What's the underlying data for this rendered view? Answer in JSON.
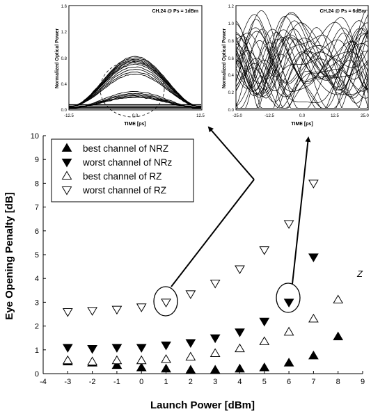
{
  "chart_data": [
    {
      "type": "scatter",
      "title": "",
      "xlabel": "Launch Power [dBm]",
      "ylabel": "Eye Opening Penalty [dB]",
      "xlim": [
        -4,
        9
      ],
      "ylim": [
        0,
        10
      ],
      "xticks": [
        "-4",
        "-3",
        "-2",
        "-1",
        "0",
        "1",
        "2",
        "3",
        "4",
        "5",
        "6",
        "7",
        "8",
        "9"
      ],
      "yticks": [
        "0",
        "1",
        "2",
        "3",
        "4",
        "5",
        "6",
        "7",
        "8",
        "9",
        "10"
      ],
      "legend_position": "top-left",
      "series": [
        {
          "name": "best channel of NRZ",
          "marker": "triangle-up",
          "filled": true,
          "x": [
            -3,
            -2,
            -1,
            0,
            1,
            2,
            3,
            4,
            5,
            6,
            7,
            8
          ],
          "y": [
            0.5,
            0.45,
            0.35,
            0.25,
            0.2,
            0.15,
            0.15,
            0.2,
            0.25,
            0.45,
            0.75,
            1.55
          ]
        },
        {
          "name": "worst channel of NRz",
          "marker": "triangle-down",
          "filled": true,
          "x": [
            -3,
            -2,
            -1,
            0,
            1,
            2,
            3,
            4,
            5,
            6,
            7
          ],
          "y": [
            1.1,
            1.05,
            1.1,
            1.1,
            1.2,
            1.3,
            1.5,
            1.75,
            2.2,
            3.0,
            4.9
          ]
        },
        {
          "name": "best channel of RZ",
          "marker": "triangle-up",
          "filled": false,
          "x": [
            -3,
            -2,
            -1,
            0,
            1,
            2,
            3,
            4,
            5,
            6,
            7,
            8
          ],
          "y": [
            0.55,
            0.5,
            0.55,
            0.55,
            0.6,
            0.7,
            0.85,
            1.05,
            1.35,
            1.75,
            2.3,
            3.1
          ]
        },
        {
          "name": "worst channel of RZ",
          "marker": "triangle-down",
          "filled": false,
          "x": [
            -3,
            -2,
            -1,
            0,
            1,
            2,
            3,
            4,
            5,
            6,
            7
          ],
          "y": [
            2.6,
            2.65,
            2.7,
            2.8,
            3.0,
            3.35,
            3.8,
            4.4,
            5.2,
            6.3,
            8.0
          ]
        }
      ],
      "annotations": [
        {
          "type": "ellipse",
          "x": 1,
          "y": 3.0
        },
        {
          "type": "ellipse",
          "x": 6,
          "y": 3.0
        },
        {
          "type": "text",
          "text": "Z",
          "x": 9,
          "y": 4.3
        }
      ]
    },
    {
      "type": "line",
      "subtype": "eye-diagram",
      "annotation": "CH.24 @ Ps = 1dBm",
      "xlabel": "TIME [ps]",
      "ylabel": "Normalized Optical Power",
      "xticks": [
        "-12.5",
        "0.0",
        "12.5"
      ],
      "yticks": [
        "0.0",
        "0.4",
        "0.8",
        "1.2",
        "1.6"
      ]
    },
    {
      "type": "line",
      "subtype": "eye-diagram",
      "annotation": "CH.24 @ Ps = 6dBm",
      "xlabel": "TIME [ps]",
      "ylabel": "Normalized Optical Power",
      "xticks": [
        "-25.0",
        "-12.5",
        "0.0",
        "12.5",
        "25.0"
      ],
      "yticks": [
        "0.0",
        "0.2",
        "0.4",
        "0.6",
        "0.8",
        "1.0",
        "1.2"
      ]
    }
  ]
}
